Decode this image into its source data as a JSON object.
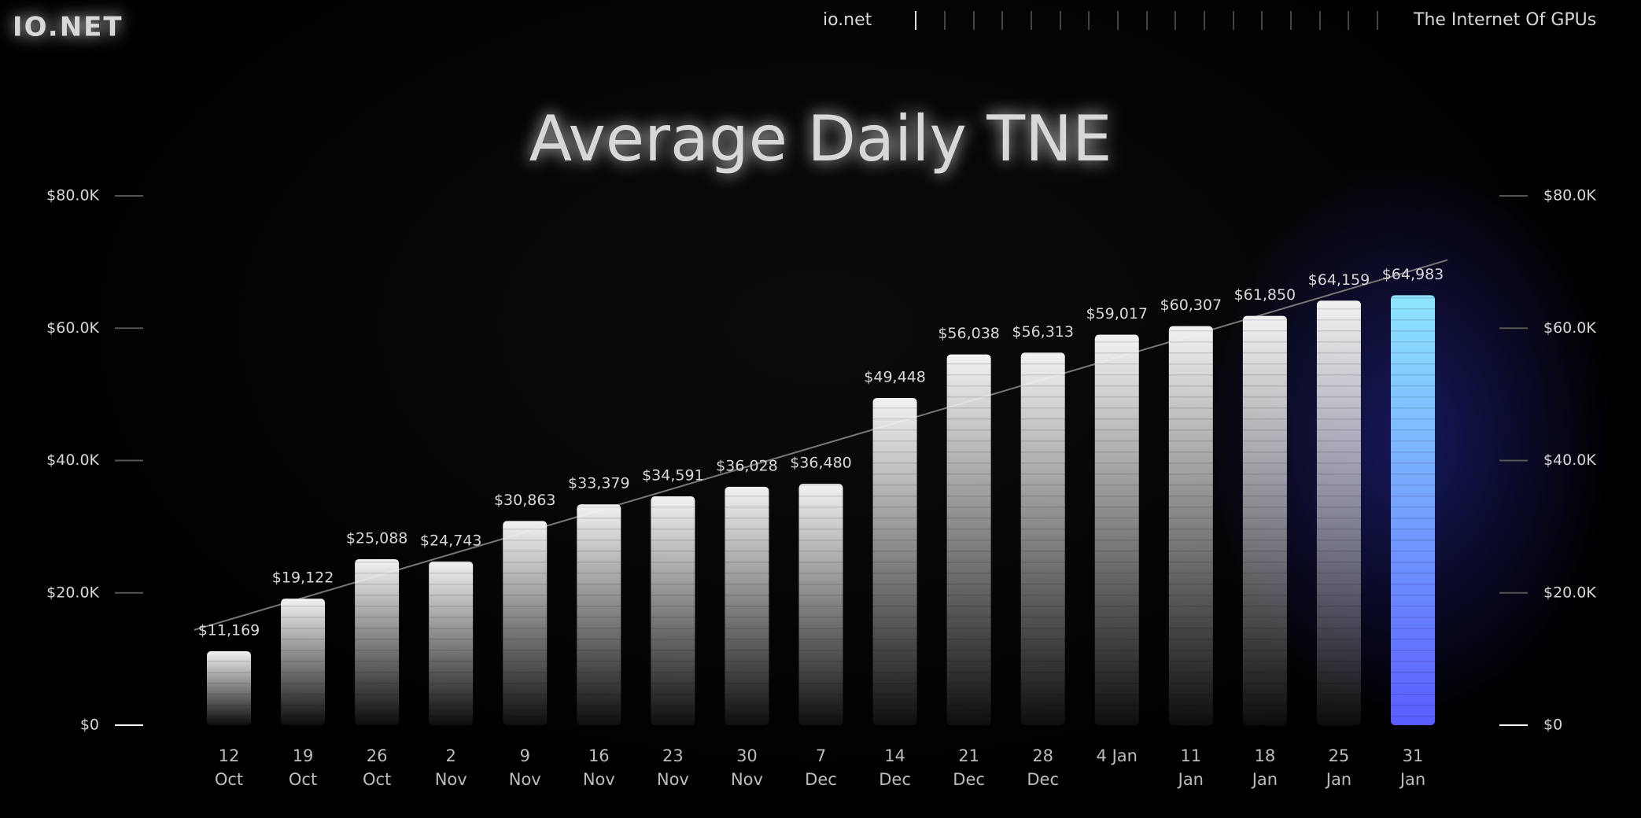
{
  "header": {
    "logo": "IO.NET",
    "site": "io.net",
    "tagline": "The Internet Of GPUs"
  },
  "chart_data": {
    "type": "bar",
    "title": "Average Daily TNE",
    "categories": [
      "12 Oct",
      "19 Oct",
      "26 Oct",
      "2 Nov",
      "9 Nov",
      "16 Nov",
      "23 Nov",
      "30 Nov",
      "7 Dec",
      "14 Dec",
      "21 Dec",
      "28 Dec",
      "4 Jan",
      "11 Jan",
      "18 Jan",
      "25 Jan",
      "31 Jan"
    ],
    "values": [
      11169,
      19122,
      25088,
      24743,
      30863,
      33379,
      34591,
      36028,
      36480,
      49448,
      56038,
      56313,
      59017,
      60307,
      61850,
      64159,
      64983
    ],
    "value_labels": [
      "$11,169",
      "$19,122",
      "$25,088",
      "$24,743",
      "$30,863",
      "$33,379",
      "$34,591",
      "$36,028",
      "$36,480",
      "$49,448",
      "$56,038",
      "$56,313",
      "$59,017",
      "$60,307",
      "$61,850",
      "$64,159",
      "$64,983"
    ],
    "colors": [
      "#f2f2f2",
      "#f2f2f2",
      "#f2f2f2",
      "#f2f2f2",
      "#f2f2f2",
      "#f2f2f2",
      "#f2f2f2",
      "#f2f2f2",
      "#f2f2f2",
      "#f2f2f2",
      "#f2f2f2",
      "#f2f2f2",
      "#f2f2f2",
      "#f2f2f2",
      "#f2f2f2",
      "#f2f2f2",
      "#8ee6ff"
    ],
    "trend_line": {
      "values": [
        14400,
        70300
      ]
    },
    "ylim": [
      0,
      80000
    ],
    "yticks": [
      {
        "value": 0,
        "label": "$0"
      },
      {
        "value": 20000,
        "label": "$20.0K"
      },
      {
        "value": 40000,
        "label": "$40.0K"
      },
      {
        "value": 60000,
        "label": "$60.0K"
      },
      {
        "value": 80000,
        "label": "$80.0K"
      }
    ],
    "y2lim": [
      0,
      80000
    ],
    "y2ticks": [
      {
        "value": 0,
        "label": "$0"
      },
      {
        "value": 20000,
        "label": "$20.0K"
      },
      {
        "value": 40000,
        "label": "$40.0K"
      },
      {
        "value": 60000,
        "label": "$60.0K"
      },
      {
        "value": 80000,
        "label": "$80.0K"
      }
    ]
  }
}
